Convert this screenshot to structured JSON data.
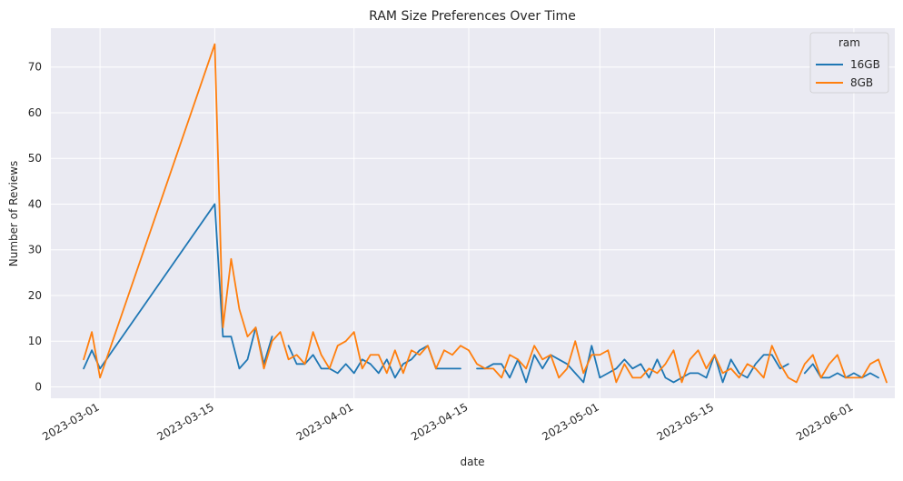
{
  "chart_data": {
    "type": "line",
    "title": "RAM Size Preferences Over Time",
    "xlabel": "date",
    "ylabel": "Number of Reviews",
    "x_range": [
      "2023-02-23",
      "2023-06-06"
    ],
    "ylim": [
      -2.5,
      78.5
    ],
    "y_ticks": [
      0,
      10,
      20,
      30,
      40,
      50,
      60,
      70
    ],
    "x_ticks": [
      "2023-03-01",
      "2023-03-15",
      "2023-04-01",
      "2023-04-15",
      "2023-05-01",
      "2023-05-15",
      "2023-06-01"
    ],
    "grid": true,
    "legend": {
      "title": "ram",
      "position": "top-right"
    },
    "series": [
      {
        "name": "16GB",
        "color": "#1f77b4",
        "points": [
          [
            "2023-02-27",
            4
          ],
          [
            "2023-02-28",
            8
          ],
          [
            "2023-03-01",
            4
          ],
          [
            "2023-03-15",
            40
          ],
          [
            "2023-03-16",
            11
          ],
          [
            "2023-03-17",
            11
          ],
          [
            "2023-03-18",
            4
          ],
          [
            "2023-03-19",
            6
          ],
          [
            "2023-03-20",
            13
          ],
          [
            "2023-03-21",
            5
          ],
          [
            "2023-03-22",
            11
          ],
          [
            "2023-03-24",
            9
          ],
          [
            "2023-03-25",
            5
          ],
          [
            "2023-03-26",
            5
          ],
          [
            "2023-03-27",
            7
          ],
          [
            "2023-03-28",
            4
          ],
          [
            "2023-03-29",
            4
          ],
          [
            "2023-03-30",
            3
          ],
          [
            "2023-03-31",
            5
          ],
          [
            "2023-04-01",
            3
          ],
          [
            "2023-04-02",
            6
          ],
          [
            "2023-04-03",
            5
          ],
          [
            "2023-04-04",
            3
          ],
          [
            "2023-04-05",
            6
          ],
          [
            "2023-04-06",
            2
          ],
          [
            "2023-04-07",
            5
          ],
          [
            "2023-04-08",
            6
          ],
          [
            "2023-04-09",
            8
          ],
          [
            "2023-04-10",
            9
          ],
          [
            "2023-04-11",
            4
          ],
          [
            "2023-04-12",
            4
          ],
          [
            "2023-04-13",
            4
          ],
          [
            "2023-04-14",
            4
          ],
          [
            "2023-04-16",
            4
          ],
          [
            "2023-04-17",
            4
          ],
          [
            "2023-04-18",
            5
          ],
          [
            "2023-04-19",
            5
          ],
          [
            "2023-04-20",
            2
          ],
          [
            "2023-04-21",
            6
          ],
          [
            "2023-04-22",
            1
          ],
          [
            "2023-04-23",
            7
          ],
          [
            "2023-04-24",
            4
          ],
          [
            "2023-04-25",
            7
          ],
          [
            "2023-04-26",
            6
          ],
          [
            "2023-04-27",
            5
          ],
          [
            "2023-04-28",
            3
          ],
          [
            "2023-04-29",
            1
          ],
          [
            "2023-04-30",
            9
          ],
          [
            "2023-05-01",
            2
          ],
          [
            "2023-05-02",
            3
          ],
          [
            "2023-05-03",
            4
          ],
          [
            "2023-05-04",
            6
          ],
          [
            "2023-05-05",
            4
          ],
          [
            "2023-05-06",
            5
          ],
          [
            "2023-05-07",
            2
          ],
          [
            "2023-05-08",
            6
          ],
          [
            "2023-05-09",
            2
          ],
          [
            "2023-05-10",
            1
          ],
          [
            "2023-05-11",
            2
          ],
          [
            "2023-05-12",
            3
          ],
          [
            "2023-05-13",
            3
          ],
          [
            "2023-05-14",
            2
          ],
          [
            "2023-05-15",
            7
          ],
          [
            "2023-05-16",
            1
          ],
          [
            "2023-05-17",
            6
          ],
          [
            "2023-05-18",
            3
          ],
          [
            "2023-05-19",
            2
          ],
          [
            "2023-05-20",
            5
          ],
          [
            "2023-05-21",
            7
          ],
          [
            "2023-05-22",
            7
          ],
          [
            "2023-05-23",
            4
          ],
          [
            "2023-05-24",
            5
          ],
          [
            "2023-05-26",
            3
          ],
          [
            "2023-05-27",
            5
          ],
          [
            "2023-05-28",
            2
          ],
          [
            "2023-05-29",
            2
          ],
          [
            "2023-05-30",
            3
          ],
          [
            "2023-05-31",
            2
          ],
          [
            "2023-06-01",
            3
          ],
          [
            "2023-06-02",
            2
          ],
          [
            "2023-06-03",
            3
          ],
          [
            "2023-06-04",
            2
          ]
        ]
      },
      {
        "name": "8GB",
        "color": "#ff7f0e",
        "points": [
          [
            "2023-02-27",
            6
          ],
          [
            "2023-02-28",
            12
          ],
          [
            "2023-03-01",
            2
          ],
          [
            "2023-03-15",
            75
          ],
          [
            "2023-03-16",
            13
          ],
          [
            "2023-03-17",
            28
          ],
          [
            "2023-03-18",
            17
          ],
          [
            "2023-03-19",
            11
          ],
          [
            "2023-03-20",
            13
          ],
          [
            "2023-03-21",
            4
          ],
          [
            "2023-03-22",
            10
          ],
          [
            "2023-03-23",
            12
          ],
          [
            "2023-03-24",
            6
          ],
          [
            "2023-03-25",
            7
          ],
          [
            "2023-03-26",
            5
          ],
          [
            "2023-03-27",
            12
          ],
          [
            "2023-03-28",
            7
          ],
          [
            "2023-03-29",
            4
          ],
          [
            "2023-03-30",
            9
          ],
          [
            "2023-03-31",
            10
          ],
          [
            "2023-04-01",
            12
          ],
          [
            "2023-04-02",
            4
          ],
          [
            "2023-04-03",
            7
          ],
          [
            "2023-04-04",
            7
          ],
          [
            "2023-04-05",
            3
          ],
          [
            "2023-04-06",
            8
          ],
          [
            "2023-04-07",
            3
          ],
          [
            "2023-04-08",
            8
          ],
          [
            "2023-04-09",
            7
          ],
          [
            "2023-04-10",
            9
          ],
          [
            "2023-04-11",
            4
          ],
          [
            "2023-04-12",
            8
          ],
          [
            "2023-04-13",
            7
          ],
          [
            "2023-04-14",
            9
          ],
          [
            "2023-04-15",
            8
          ],
          [
            "2023-04-16",
            5
          ],
          [
            "2023-04-17",
            4
          ],
          [
            "2023-04-18",
            4
          ],
          [
            "2023-04-19",
            2
          ],
          [
            "2023-04-20",
            7
          ],
          [
            "2023-04-21",
            6
          ],
          [
            "2023-04-22",
            4
          ],
          [
            "2023-04-23",
            9
          ],
          [
            "2023-04-24",
            6
          ],
          [
            "2023-04-25",
            7
          ],
          [
            "2023-04-26",
            2
          ],
          [
            "2023-04-27",
            4
          ],
          [
            "2023-04-28",
            10
          ],
          [
            "2023-04-29",
            3
          ],
          [
            "2023-04-30",
            7
          ],
          [
            "2023-05-01",
            7
          ],
          [
            "2023-05-02",
            8
          ],
          [
            "2023-05-03",
            1
          ],
          [
            "2023-05-04",
            5
          ],
          [
            "2023-05-05",
            2
          ],
          [
            "2023-05-06",
            2
          ],
          [
            "2023-05-07",
            4
          ],
          [
            "2023-05-08",
            3
          ],
          [
            "2023-05-09",
            5
          ],
          [
            "2023-05-10",
            8
          ],
          [
            "2023-05-11",
            1
          ],
          [
            "2023-05-12",
            6
          ],
          [
            "2023-05-13",
            8
          ],
          [
            "2023-05-14",
            4
          ],
          [
            "2023-05-15",
            7
          ],
          [
            "2023-05-16",
            3
          ],
          [
            "2023-05-17",
            4
          ],
          [
            "2023-05-18",
            2
          ],
          [
            "2023-05-19",
            5
          ],
          [
            "2023-05-20",
            4
          ],
          [
            "2023-05-21",
            2
          ],
          [
            "2023-05-22",
            9
          ],
          [
            "2023-05-23",
            5
          ],
          [
            "2023-05-24",
            2
          ],
          [
            "2023-05-25",
            1
          ],
          [
            "2023-05-26",
            5
          ],
          [
            "2023-05-27",
            7
          ],
          [
            "2023-05-28",
            2
          ],
          [
            "2023-05-29",
            5
          ],
          [
            "2023-05-30",
            7
          ],
          [
            "2023-05-31",
            2
          ],
          [
            "2023-06-01",
            2
          ],
          [
            "2023-06-02",
            2
          ],
          [
            "2023-06-03",
            5
          ],
          [
            "2023-06-04",
            6
          ],
          [
            "2023-06-05",
            1
          ]
        ]
      }
    ]
  }
}
